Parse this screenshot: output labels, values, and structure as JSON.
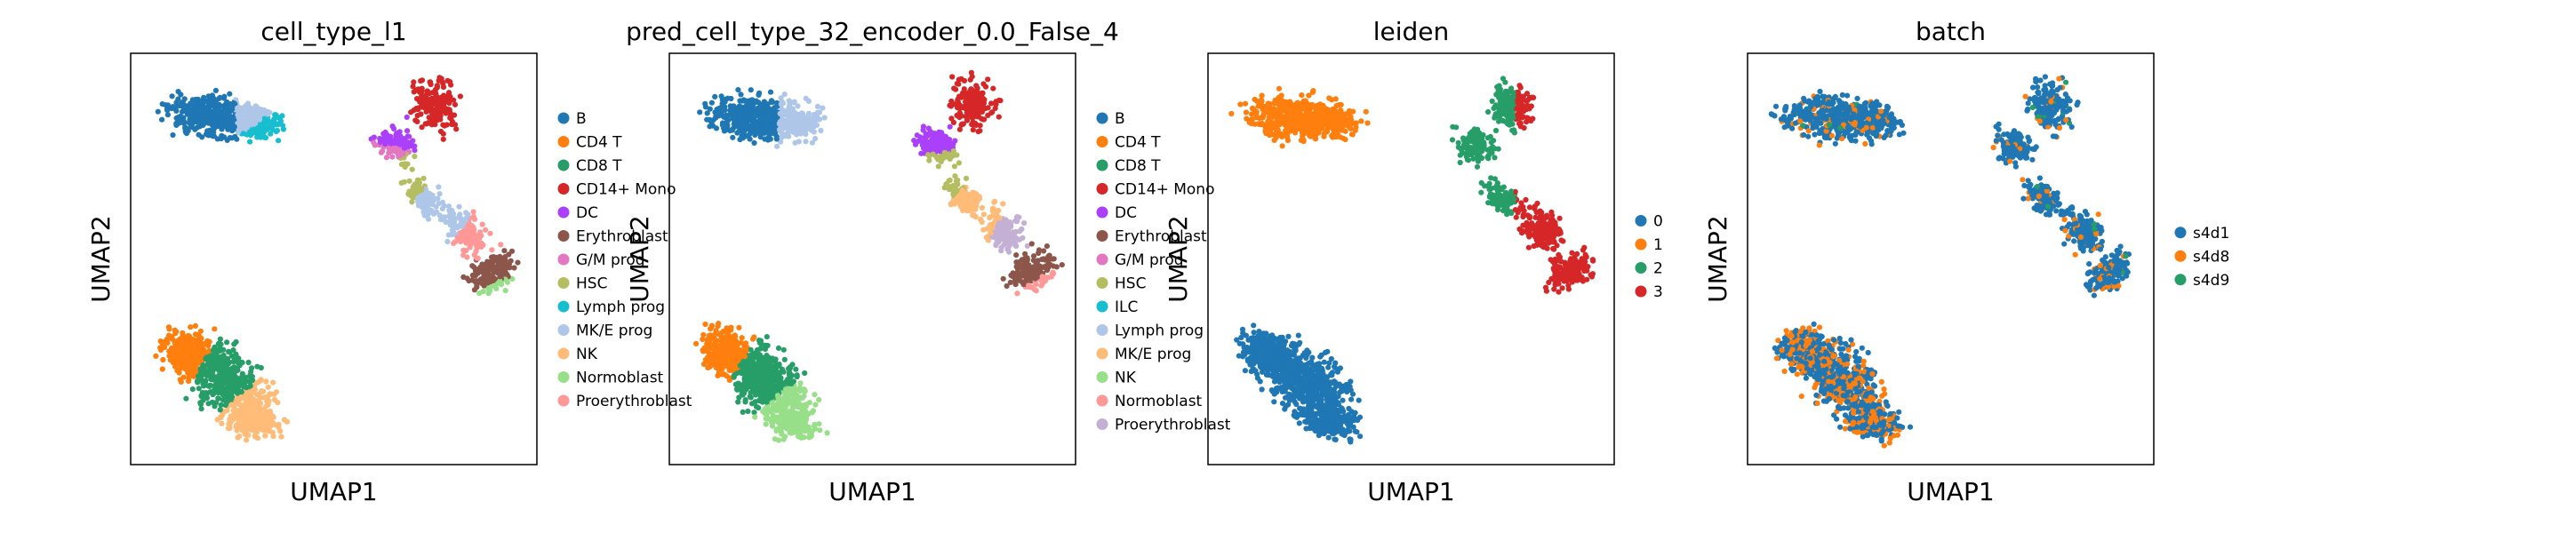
{
  "figure": {
    "panels": [
      {
        "title": "cell_type_l1",
        "xlabel": "UMAP1",
        "ylabel": "UMAP2",
        "legend": [
          {
            "label": "B",
            "color": "#1f77b4"
          },
          {
            "label": "CD4 T",
            "color": "#ff7f0e"
          },
          {
            "label": "CD8 T",
            "color": "#279e68"
          },
          {
            "label": "CD14+ Mono",
            "color": "#d62728"
          },
          {
            "label": "DC",
            "color": "#aa40fc"
          },
          {
            "label": "Erythroblast",
            "color": "#8c564b"
          },
          {
            "label": "G/M prog",
            "color": "#e377c2"
          },
          {
            "label": "HSC",
            "color": "#b5bd61"
          },
          {
            "label": "Lymph prog",
            "color": "#17becf"
          },
          {
            "label": "MK/E prog",
            "color": "#aec7e8"
          },
          {
            "label": "NK",
            "color": "#ffbb78"
          },
          {
            "label": "Normoblast",
            "color": "#98df8a"
          },
          {
            "label": "Proerythroblast",
            "color": "#ff9896"
          }
        ]
      },
      {
        "title": "pred_cell_type_32_encoder_0.0_False_4",
        "xlabel": "UMAP1",
        "ylabel": "UMAP2",
        "legend": [
          {
            "label": "B",
            "color": "#1f77b4"
          },
          {
            "label": "CD4 T",
            "color": "#ff7f0e"
          },
          {
            "label": "CD8 T",
            "color": "#279e68"
          },
          {
            "label": "CD14+ Mono",
            "color": "#d62728"
          },
          {
            "label": "DC",
            "color": "#aa40fc"
          },
          {
            "label": "Erythroblast",
            "color": "#8c564b"
          },
          {
            "label": "G/M prog",
            "color": "#e377c2"
          },
          {
            "label": "HSC",
            "color": "#b5bd61"
          },
          {
            "label": "ILC",
            "color": "#17becf"
          },
          {
            "label": "Lymph prog",
            "color": "#aec7e8"
          },
          {
            "label": "MK/E prog",
            "color": "#ffbb78"
          },
          {
            "label": "NK",
            "color": "#98df8a"
          },
          {
            "label": "Normoblast",
            "color": "#ff9896"
          },
          {
            "label": "Proerythroblast",
            "color": "#c5b0d5"
          }
        ]
      },
      {
        "title": "leiden",
        "xlabel": "UMAP1",
        "ylabel": "UMAP2",
        "legend": [
          {
            "label": "0",
            "color": "#1f77b4"
          },
          {
            "label": "1",
            "color": "#ff7f0e"
          },
          {
            "label": "2",
            "color": "#279e68"
          },
          {
            "label": "3",
            "color": "#d62728"
          }
        ]
      },
      {
        "title": "batch",
        "xlabel": "UMAP1",
        "ylabel": "UMAP2",
        "legend": [
          {
            "label": "s4d1",
            "color": "#1f77b4"
          },
          {
            "label": "s4d8",
            "color": "#ff7f0e"
          },
          {
            "label": "s4d9",
            "color": "#279e68"
          }
        ]
      }
    ]
  },
  "chart_data": [
    {
      "type": "scatter",
      "title": "cell_type_l1",
      "xlabel": "UMAP1",
      "ylabel": "UMAP2",
      "ticks": "none",
      "grid": false,
      "legend_position": "right",
      "clusters": [
        {
          "category": "B",
          "color": "#1f77b4",
          "x": 0.2,
          "y": 0.85
        },
        {
          "category": "Lymph prog",
          "color": "#17becf",
          "x": 0.33,
          "y": 0.83
        },
        {
          "category": "MK/E prog",
          "color": "#aec7e8",
          "x": 0.31,
          "y": 0.86
        },
        {
          "category": "CD14+ Mono",
          "color": "#d62728",
          "x": 0.75,
          "y": 0.88
        },
        {
          "category": "DC",
          "color": "#aa40fc",
          "x": 0.64,
          "y": 0.8
        },
        {
          "category": "G/M prog",
          "color": "#e377c2",
          "x": 0.63,
          "y": 0.76
        },
        {
          "category": "HSC",
          "color": "#b5bd61",
          "x": 0.65,
          "y": 0.72
        },
        {
          "category": "MK/E prog",
          "color": "#aec7e8",
          "x": 0.78,
          "y": 0.6
        },
        {
          "category": "Proerythroblast",
          "color": "#ff9896",
          "x": 0.86,
          "y": 0.55
        },
        {
          "category": "Erythroblast",
          "color": "#8c564b",
          "x": 0.9,
          "y": 0.47
        },
        {
          "category": "Normoblast",
          "color": "#98df8a",
          "x": 0.92,
          "y": 0.42
        },
        {
          "category": "CD4 T",
          "color": "#ff7f0e",
          "x": 0.12,
          "y": 0.27
        },
        {
          "category": "CD8 T",
          "color": "#279e68",
          "x": 0.22,
          "y": 0.21
        },
        {
          "category": "NK",
          "color": "#ffbb78",
          "x": 0.3,
          "y": 0.11
        }
      ]
    },
    {
      "type": "scatter",
      "title": "pred_cell_type_32_encoder_0.0_False_4",
      "xlabel": "UMAP1",
      "ylabel": "UMAP2",
      "ticks": "none",
      "grid": false,
      "legend_position": "right",
      "clusters": [
        {
          "category": "B",
          "color": "#1f77b4",
          "x": 0.2,
          "y": 0.85
        },
        {
          "category": "Lymph prog",
          "color": "#aec7e8",
          "x": 0.33,
          "y": 0.84
        },
        {
          "category": "CD14+ Mono",
          "color": "#d62728",
          "x": 0.75,
          "y": 0.88
        },
        {
          "category": "DC",
          "color": "#aa40fc",
          "x": 0.64,
          "y": 0.8
        },
        {
          "category": "HSC",
          "color": "#b5bd61",
          "x": 0.65,
          "y": 0.72
        },
        {
          "category": "MK/E prog",
          "color": "#ffbb78",
          "x": 0.78,
          "y": 0.6
        },
        {
          "category": "Proerythroblast",
          "color": "#c5b0d5",
          "x": 0.84,
          "y": 0.57
        },
        {
          "category": "Erythroblast",
          "color": "#8c564b",
          "x": 0.9,
          "y": 0.47
        },
        {
          "category": "Normoblast",
          "color": "#ff9896",
          "x": 0.92,
          "y": 0.43
        },
        {
          "category": "CD4 T",
          "color": "#ff7f0e",
          "x": 0.12,
          "y": 0.27
        },
        {
          "category": "CD8 T",
          "color": "#279e68",
          "x": 0.22,
          "y": 0.21
        },
        {
          "category": "NK",
          "color": "#98df8a",
          "x": 0.3,
          "y": 0.11
        }
      ]
    },
    {
      "type": "scatter",
      "title": "leiden",
      "xlabel": "UMAP1",
      "ylabel": "UMAP2",
      "ticks": "none",
      "grid": false,
      "legend_position": "right",
      "clusters": [
        {
          "category": "1",
          "color": "#ff7f0e",
          "x": 0.22,
          "y": 0.85
        },
        {
          "category": "2",
          "color": "#279e68",
          "x": 0.67,
          "y": 0.8
        },
        {
          "category": "3",
          "color": "#d62728",
          "x": 0.85,
          "y": 0.55
        },
        {
          "category": "0",
          "color": "#1f77b4",
          "x": 0.22,
          "y": 0.2
        }
      ]
    },
    {
      "type": "scatter",
      "title": "batch",
      "xlabel": "UMAP1",
      "ylabel": "UMAP2",
      "ticks": "none",
      "grid": false,
      "legend_position": "right",
      "clusters": [
        {
          "category": "s4d1",
          "color": "#1f77b4",
          "x": 0.22,
          "y": 0.85
        },
        {
          "category": "s4d8",
          "color": "#ff7f0e",
          "x": 0.2,
          "y": 0.22
        },
        {
          "category": "s4d9",
          "color": "#279e68",
          "x": 0.6,
          "y": 0.7
        }
      ]
    }
  ]
}
